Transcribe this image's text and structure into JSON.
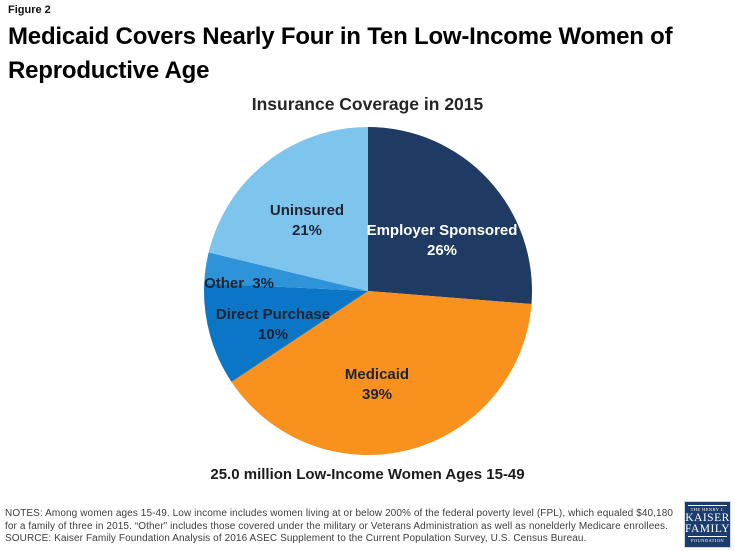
{
  "figure_label": "Figure 2",
  "title": "Medicaid Covers Nearly Four in Ten Low-Income Women of Reproductive Age",
  "chart_data": {
    "type": "pie",
    "title": "Insurance Coverage in 2015",
    "caption": "25.0 million Low-Income Women Ages 15-49",
    "start_angle_deg": 0,
    "direction": "clockwise",
    "legend": "none",
    "segments": [
      {
        "label": "Employer Sponsored",
        "value": 26,
        "value_label": "26%",
        "color": "#1F3B63",
        "text_color": "#FFFFFF"
      },
      {
        "label": "Medicaid",
        "value": 39,
        "value_label": "39%",
        "color": "#F8911E",
        "text_color": "#1E2433"
      },
      {
        "label": "Direct Purchase",
        "value": 10,
        "value_label": "10%",
        "color": "#0B76C5",
        "text_color": "#1E2433"
      },
      {
        "label": "Other",
        "value": 3,
        "value_label": "3%",
        "color": "#2E93D8",
        "text_color": "#1E2433"
      },
      {
        "label": "Uninsured",
        "value": 21,
        "value_label": "21%",
        "color": "#7EC5EE",
        "text_color": "#1E2433"
      }
    ]
  },
  "footer": {
    "notes": "NOTES: Among women ages 15-49. Low income includes women living at or below 200% of the federal poverty level (FPL), which equaled $40,180 for a family of three in 2015. “Other” includes those covered under the military or Veterans Administration as well as nonelderly Medicare enrollees.",
    "source": "SOURCE: Kaiser Family Foundation Analysis of 2016 ASEC Supplement to the Current Population Survey, U.S. Census Bureau."
  },
  "logo": {
    "line1": "THE HENRY J.",
    "line2": "KAISER",
    "line3": "FAMILY",
    "line4": "FOUNDATION"
  }
}
